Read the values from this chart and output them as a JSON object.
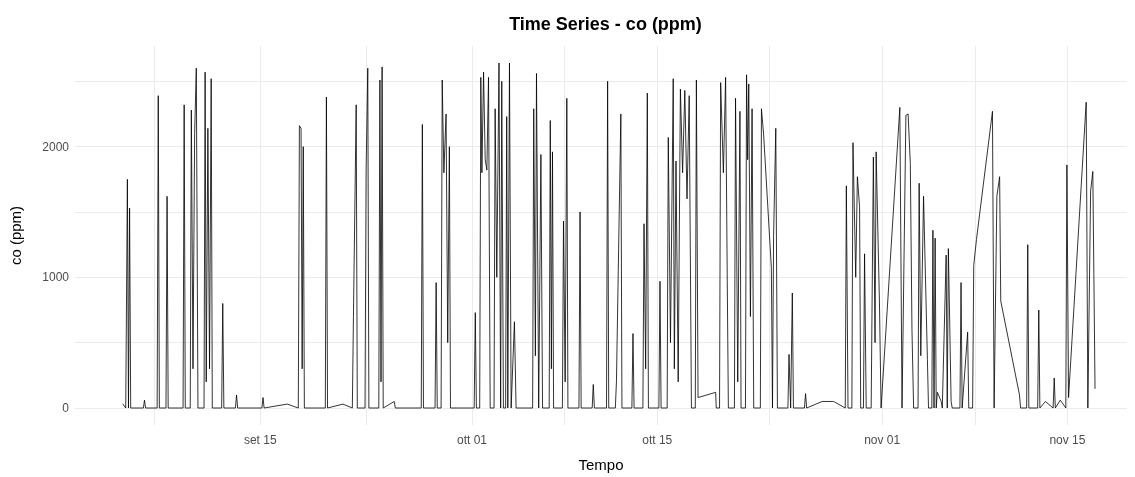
{
  "chart_data": {
    "type": "line",
    "title": "Time Series - co (ppm)",
    "xlabel": "Tempo",
    "ylabel": "co (ppm)",
    "x": [
      "--09-04T15:00",
      "--09-04T20:00",
      "--09-04T23:00",
      "--09-05T01:00",
      "--09-05T03:00",
      "--09-05T05:00",
      "--09-06T04:00",
      "--09-06T06:00",
      "--09-06T08:00",
      "--09-07T05:00",
      "--09-07T07:00",
      "--09-07T09:00",
      "--09-07T21:00",
      "--09-07T23:00",
      "--09-08T01:00",
      "--09-09T04:00",
      "--09-09T06:00",
      "--09-09T08:00",
      "--09-09T17:00",
      "--09-09T19:00",
      "--09-09T22:00",
      "--09-10T01:00",
      "--09-10T04:00",
      "--09-10T07:00",
      "--09-10T18:00",
      "--09-10T20:00",
      "--09-10T22:00",
      "--09-11T01:00",
      "--09-11T04:00",
      "--09-11T07:00",
      "--09-11T09:00",
      "--09-12T02:00",
      "--09-12T04:00",
      "--09-12T06:00",
      "--09-13T03:00",
      "--09-13T05:00",
      "--09-13T07:00",
      "--09-15T03:00",
      "--09-15T05:00",
      "--09-15T07:00",
      "--09-17T01:00",
      "--09-17T21:00",
      "--09-17T23:00",
      "--09-18T02:00",
      "--09-18T04:00",
      "--09-18T06:00",
      "--09-18T08:00",
      "--09-19T22:00",
      "--09-20T00:00",
      "--09-20T02:00",
      "--09-21T06:00",
      "--09-21T23:00",
      "--09-22T01:00",
      "--09-22T06:00",
      "--09-22T08:00",
      "--09-22T22:00",
      "--09-23T00:00",
      "--09-23T03:00",
      "--09-23T05:00",
      "--09-23T23:00",
      "--09-24T01:00",
      "--09-24T03:00",
      "--09-24T05:00",
      "--09-24T07:00",
      "--09-25T03:00",
      "--09-25T05:00",
      "--09-27T04:00",
      "--09-27T06:00",
      "--09-27T08:00",
      "--09-28T05:00",
      "--09-28T07:00",
      "--09-28T09:00",
      "--09-28T16:00",
      "--09-28T18:00",
      "--09-28T21:00",
      "--09-29T01:00",
      "--09-29T04:00",
      "--09-29T07:00",
      "--09-29T09:00",
      "--10-01T04:00",
      "--10-01T06:00",
      "--10-01T08:00",
      "--10-01T14:00",
      "--10-01T16:00",
      "--10-01T18:00",
      "--10-01T21:00",
      "--10-02T00:00",
      "--10-02T03:00",
      "--10-02T06:00",
      "--10-02T09:00",
      "--10-02T16:00",
      "--10-02T18:00",
      "--10-02T21:00",
      "--10-03T01:00",
      "--10-03T04:00",
      "--10-03T06:00",
      "--10-03T09:00",
      "--10-03T13:00",
      "--10-03T15:00",
      "--10-03T17:00",
      "--10-03T20:00",
      "--10-03T23:00",
      "--10-04T05:00",
      "--10-04T08:00",
      "--10-05T14:00",
      "--10-05T16:00",
      "--10-05T19:00",
      "--10-05T21:00",
      "--10-06T01:00",
      "--10-06T05:00",
      "--10-06T08:00",
      "--10-06T20:00",
      "--10-06T22:00",
      "--10-07T00:00",
      "--10-07T02:00",
      "--10-07T04:00",
      "--10-07T20:00",
      "--10-07T22:00",
      "--10-08T01:00",
      "--10-08T04:00",
      "--10-08T06:00",
      "--10-09T02:00",
      "--10-09T04:00",
      "--10-09T06:00",
      "--10-10T02:00",
      "--10-10T04:00",
      "--10-10T06:00",
      "--10-11T04:00",
      "--10-11T06:00",
      "--10-11T08:00",
      "--10-11T20:00",
      "--10-11T22:00",
      "--10-12T06:00",
      "--10-12T08:00",
      "--10-13T02:00",
      "--10-13T04:00",
      "--10-13T06:00",
      "--10-13T22:00",
      "--10-14T00:00",
      "--10-14T03:00",
      "--10-14T06:00",
      "--10-14T08:00",
      "--10-15T03:00",
      "--10-15T05:00",
      "--10-15T07:00",
      "--10-15T18:00",
      "--10-15T20:00",
      "--10-16T00:00",
      "--10-16T05:00",
      "--10-16T07:00",
      "--10-16T10:00",
      "--10-16T14:00",
      "--10-16T18:00",
      "--10-16T22:00",
      "--10-17T02:00",
      "--10-17T06:00",
      "--10-17T10:00",
      "--10-17T14:00",
      "--10-17T21:00",
      "--10-17T23:00",
      "--10-18T02:00",
      "--10-19T10:00",
      "--10-19T11:00",
      "--10-19T17:00",
      "--10-19T19:00",
      "--10-20T00:00",
      "--10-20T04:00",
      "--10-20T07:00",
      "--10-20T09:00",
      "--10-20T20:00",
      "--10-20T22:00",
      "--10-21T02:00",
      "--10-21T06:00",
      "--10-21T08:00",
      "--10-21T16:00",
      "--10-21T18:00",
      "--10-21T20:00",
      "--10-21T22:00",
      "--10-22T01:00",
      "--10-22T04:00",
      "--10-22T07:00",
      "--10-22T19:00",
      "--10-22T21:00",
      "--10-23T01:00",
      "--10-23T15:00",
      "--10-23T17:00",
      "--10-23T19:00",
      "--10-23T23:00",
      "--10-24T02:00",
      "--10-24T21:00",
      "--10-24T23:00",
      "--10-25T02:00",
      "--10-25T05:00",
      "--10-25T07:00",
      "--10-26T03:00",
      "--10-26T05:00",
      "--10-26T07:00",
      "--10-27T11:00",
      "--10-28T08:00",
      "--10-29T05:00",
      "--10-29T07:00",
      "--10-29T10:00",
      "--10-29T17:00",
      "--10-29T19:00",
      "--10-30T00:00",
      "--10-30T03:00",
      "--10-30T07:00",
      "--10-30T09:00",
      "--10-30T14:00",
      "--10-30T16:00",
      "--10-30T19:00",
      "--10-31T04:00",
      "--10-31T08:00",
      "--10-31T11:00",
      "--10-31T13:00",
      "--10-31T19:00",
      "--10-31T22:00",
      "--11-02T08:00",
      "--11-02T12:00",
      "--11-02T19:00",
      "--11-02T23:00",
      "--11-03T03:00",
      "--11-03T06:00",
      "--11-03T09:00",
      "--11-03T17:00",
      "--11-03T19:00",
      "--11-03T22:00",
      "--11-04T03:00",
      "--11-04T10:00",
      "--11-04T12:00",
      "--11-04T18:00",
      "--11-04T20:00",
      "--11-04T22:00",
      "--11-05T00:00",
      "--11-05T02:00",
      "--11-05T04:00",
      "--11-05T11:00",
      "--11-05T13:00",
      "--11-05T20:00",
      "--11-05T22:00",
      "--11-06T00:00",
      "--11-06T05:00",
      "--11-06T07:00",
      "--11-06T21:00",
      "--11-06T23:00",
      "--11-07T01:00",
      "--11-07T11:00",
      "--11-07T13:00",
      "--11-07T20:00",
      "--11-07T22:00",
      "--11-08T03:00",
      "--11-09T08:00",
      "--11-09T11:00",
      "--11-09T16:00",
      "--11-09T21:00",
      "--11-09T23:00",
      "--11-11T09:00",
      "--11-11T11:00",
      "--11-11T22:00",
      "--11-12T00:00",
      "--11-12T02:00",
      "--11-12T18:00",
      "--11-12T20:00",
      "--11-12T22:00",
      "--11-13T08:00",
      "--11-13T22:00",
      "--11-14T00:00",
      "--11-14T02:00",
      "--11-14T11:00",
      "--11-14T21:00",
      "--11-14T23:00",
      "--11-15T02:00",
      "--11-16T10:00",
      "--11-16T13:00",
      "--11-16T18:00",
      "--11-16T22:00",
      "--11-17T02:00"
    ],
    "series": [
      {
        "color": "#000000",
        "values": [
          30,
          0,
          1750,
          0,
          1530,
          0,
          0,
          60,
          0,
          0,
          2390,
          0,
          0,
          1620,
          0,
          0,
          2320,
          0,
          0,
          2280,
          300,
          2100,
          2600,
          0,
          0,
          2570,
          200,
          2140,
          300,
          2520,
          0,
          0,
          800,
          0,
          0,
          100,
          0,
          0,
          80,
          0,
          30,
          0,
          2160,
          2140,
          300,
          2000,
          0,
          0,
          2380,
          0,
          30,
          0,
          700,
          2320,
          0,
          0,
          1820,
          2600,
          0,
          0,
          2510,
          200,
          2610,
          0,
          50,
          0,
          0,
          2170,
          0,
          0,
          960,
          0,
          0,
          2510,
          1800,
          2250,
          500,
          2000,
          0,
          0,
          730,
          0,
          0,
          2530,
          1800,
          2570,
          1900,
          1820,
          2530,
          0,
          0,
          2290,
          1000,
          2640,
          0,
          2500,
          0,
          0,
          2230,
          0,
          2640,
          0,
          660,
          0,
          0,
          2290,
          400,
          2560,
          0,
          1940,
          0,
          0,
          2200,
          300,
          1960,
          0,
          0,
          1430,
          200,
          2370,
          0,
          0,
          1500,
          0,
          0,
          180,
          0,
          0,
          2500,
          0,
          0,
          200,
          2250,
          0,
          0,
          570,
          0,
          0,
          1410,
          300,
          2410,
          0,
          0,
          970,
          0,
          0,
          2070,
          500,
          2520,
          300,
          1890,
          200,
          2440,
          1800,
          2430,
          1600,
          2390,
          0,
          0,
          2510,
          80,
          120,
          0,
          0,
          2490,
          1800,
          2530,
          970,
          0,
          0,
          2370,
          200,
          2270,
          0,
          0,
          2550,
          1900,
          2480,
          700,
          2290,
          0,
          0,
          2290,
          2090,
          1070,
          0,
          1310,
          2140,
          0,
          0,
          410,
          0,
          880,
          0,
          0,
          110,
          0,
          50,
          50,
          0,
          1700,
          0,
          0,
          2030,
          1000,
          1770,
          1540,
          0,
          0,
          1180,
          0,
          0,
          1920,
          500,
          1960,
          810,
          0,
          2300,
          0,
          2240,
          2250,
          1870,
          600,
          0,
          0,
          1720,
          400,
          1620,
          370,
          0,
          0,
          1360,
          0,
          1300,
          0,
          120,
          50,
          0,
          1170,
          0,
          1220,
          50,
          0,
          0,
          960,
          0,
          580,
          0,
          0,
          1090,
          1290,
          2270,
          0,
          1620,
          1770,
          820,
          100,
          0,
          0,
          1250,
          0,
          0,
          750,
          0,
          50,
          0,
          230,
          0,
          60,
          0,
          1860,
          80,
          2340,
          0,
          1660,
          1810,
          150
        ]
      }
    ],
    "xlim": [
      "--09-01T00:00",
      "--11-19T12:00"
    ],
    "xticks": [
      {
        "value": "--09-07",
        "label": null
      },
      {
        "value": "--09-15",
        "label": "set 15"
      },
      {
        "value": "--09-23",
        "label": null
      },
      {
        "value": "--10-01",
        "label": "ott 01"
      },
      {
        "value": "--10-08",
        "label": null
      },
      {
        "value": "--10-15",
        "label": "ott 15"
      },
      {
        "value": "--10-23T12:00",
        "label": null
      },
      {
        "value": "--11-01",
        "label": "nov 01"
      },
      {
        "value": "--11-08",
        "label": null
      },
      {
        "value": "--11-15",
        "label": "nov 15"
      }
    ],
    "ylim": [
      -130,
      2770
    ],
    "yticks": [
      0,
      {
        "value": 500,
        "label": null
      },
      1000,
      {
        "value": 1500,
        "label": null
      },
      2000,
      {
        "value": 2500,
        "label": null
      }
    ],
    "grid": true,
    "marker": "none",
    "line_style": "solid"
  }
}
